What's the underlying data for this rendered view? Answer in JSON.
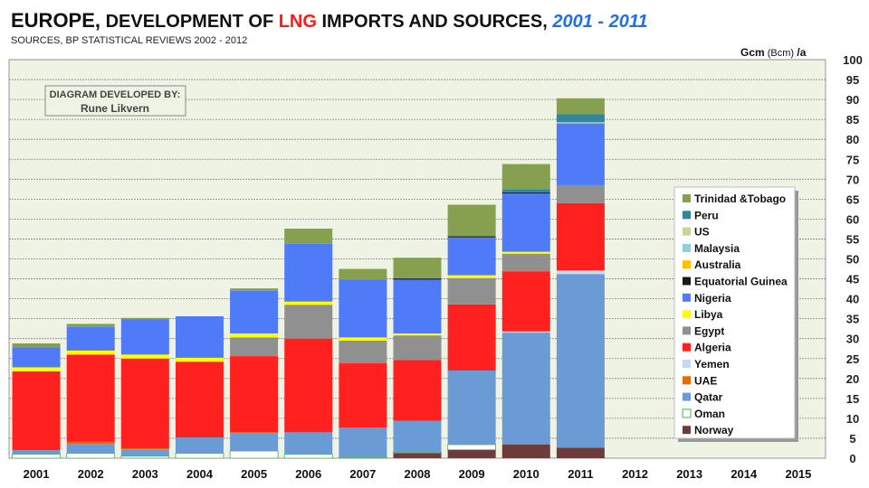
{
  "title": {
    "part1": "EUROPE,",
    "part2": " DEVELOPMENT OF ",
    "part3": "LNG",
    "part4": " IMPORTS AND SOURCES,  ",
    "part5": "2001 - 2011"
  },
  "subtitle": "SOURCES, BP STATISTICAL REVIEWS 2002 - 2012",
  "credit": {
    "line1": "DIAGRAM DEVELOPED BY:",
    "line2": "Rune Likvern"
  },
  "chart_data": {
    "type": "bar",
    "stacked": true,
    "title": "EUROPE, DEVELOPMENT OF LNG IMPORTS AND SOURCES, 2001 - 2011",
    "ylabel": "Gcm (Bcm) /a",
    "ylabel_parts": [
      "Gcm",
      "(Bcm)",
      "/a"
    ],
    "ylim": [
      0,
      100
    ],
    "yticks": [
      0,
      5,
      10,
      15,
      20,
      25,
      30,
      35,
      40,
      45,
      50,
      55,
      60,
      65,
      70,
      75,
      80,
      85,
      90,
      95,
      100
    ],
    "categories": [
      "2001",
      "2002",
      "2003",
      "2004",
      "2005",
      "2006",
      "2007",
      "2008",
      "2009",
      "2010",
      "2011",
      "2012",
      "2013",
      "2014",
      "2015"
    ],
    "grid": true,
    "legend_position": "right",
    "series": [
      {
        "name": "Norway",
        "color": "#6e3b3b",
        "values": [
          0,
          0,
          0,
          0,
          0,
          0,
          0,
          1.3,
          2.1,
          3.4,
          2.6,
          0,
          0,
          0,
          0
        ]
      },
      {
        "name": "Oman",
        "color": "#ffffff",
        "values": [
          1,
          1.2,
          0.5,
          1.2,
          1.8,
          1,
          0.2,
          0.2,
          1.3,
          0,
          0,
          0,
          0,
          0,
          0
        ]
      },
      {
        "name": "Qatar",
        "color": "#6a9bd4",
        "values": [
          1,
          2.4,
          1.7,
          4,
          4.4,
          5.5,
          7.5,
          7.9,
          18.6,
          28.1,
          43.6,
          0,
          0,
          0,
          0
        ]
      },
      {
        "name": "UAE",
        "color": "#e36c0a",
        "values": [
          0,
          0.5,
          0.3,
          0,
          0.3,
          0,
          0,
          0,
          0,
          0,
          0,
          0,
          0,
          0,
          0
        ]
      },
      {
        "name": "Yemen",
        "color": "#c6d9f1",
        "values": [
          0,
          0,
          0,
          0,
          0,
          0,
          0,
          0,
          0,
          0.3,
          0.9,
          0,
          0,
          0,
          0
        ]
      },
      {
        "name": "Algeria",
        "color": "#ff2020",
        "values": [
          19.8,
          21.9,
          22.5,
          19,
          19.1,
          23.5,
          16.1,
          15.2,
          16.6,
          15.1,
          16.9,
          0,
          0,
          0,
          0
        ]
      },
      {
        "name": "Egypt",
        "color": "#909090",
        "values": [
          0,
          0,
          0,
          0,
          4.7,
          8.5,
          5.7,
          6.2,
          6.6,
          4.4,
          4.5,
          0,
          0,
          0,
          0
        ]
      },
      {
        "name": "Libya",
        "color": "#ffff00",
        "values": [
          1,
          1,
          1,
          1,
          1,
          0.8,
          0.8,
          0.5,
          0.7,
          0.5,
          0,
          0,
          0,
          0,
          0
        ]
      },
      {
        "name": "Nigeria",
        "color": "#4f7af8",
        "values": [
          5,
          5.9,
          8.9,
          10.4,
          10.7,
          14.5,
          14.5,
          13.5,
          9.5,
          14.6,
          15.5,
          0,
          0,
          0,
          0
        ]
      },
      {
        "name": "Equatorial Guinea",
        "color": "#1a1a1a",
        "values": [
          0,
          0,
          0,
          0,
          0,
          0,
          0,
          0.3,
          0.3,
          0.3,
          0,
          0,
          0,
          0,
          0
        ]
      },
      {
        "name": "Australia",
        "color": "#ffc000",
        "values": [
          0,
          0,
          0,
          0,
          0,
          0,
          0,
          0,
          0,
          0,
          0,
          0,
          0,
          0,
          0
        ]
      },
      {
        "name": "Malaysia",
        "color": "#93cddd",
        "values": [
          0,
          0,
          0,
          0,
          0,
          0,
          0,
          0,
          0,
          0,
          0,
          0,
          0,
          0,
          0
        ]
      },
      {
        "name": "US",
        "color": "#c3d69b",
        "values": [
          0,
          0,
          0,
          0,
          0,
          0,
          0,
          0,
          0,
          0,
          0.3,
          0,
          0,
          0,
          0
        ]
      },
      {
        "name": "Peru",
        "color": "#31859c",
        "values": [
          0,
          0,
          0,
          0,
          0,
          0,
          0,
          0,
          0,
          0.8,
          2,
          0,
          0,
          0,
          0
        ]
      },
      {
        "name": "Trinidad &Tobago",
        "color": "#86a050",
        "values": [
          1,
          0.8,
          0.3,
          0,
          0.6,
          3.8,
          2.7,
          5.2,
          7.9,
          6.3,
          4,
          0,
          0,
          0,
          0
        ]
      }
    ]
  }
}
